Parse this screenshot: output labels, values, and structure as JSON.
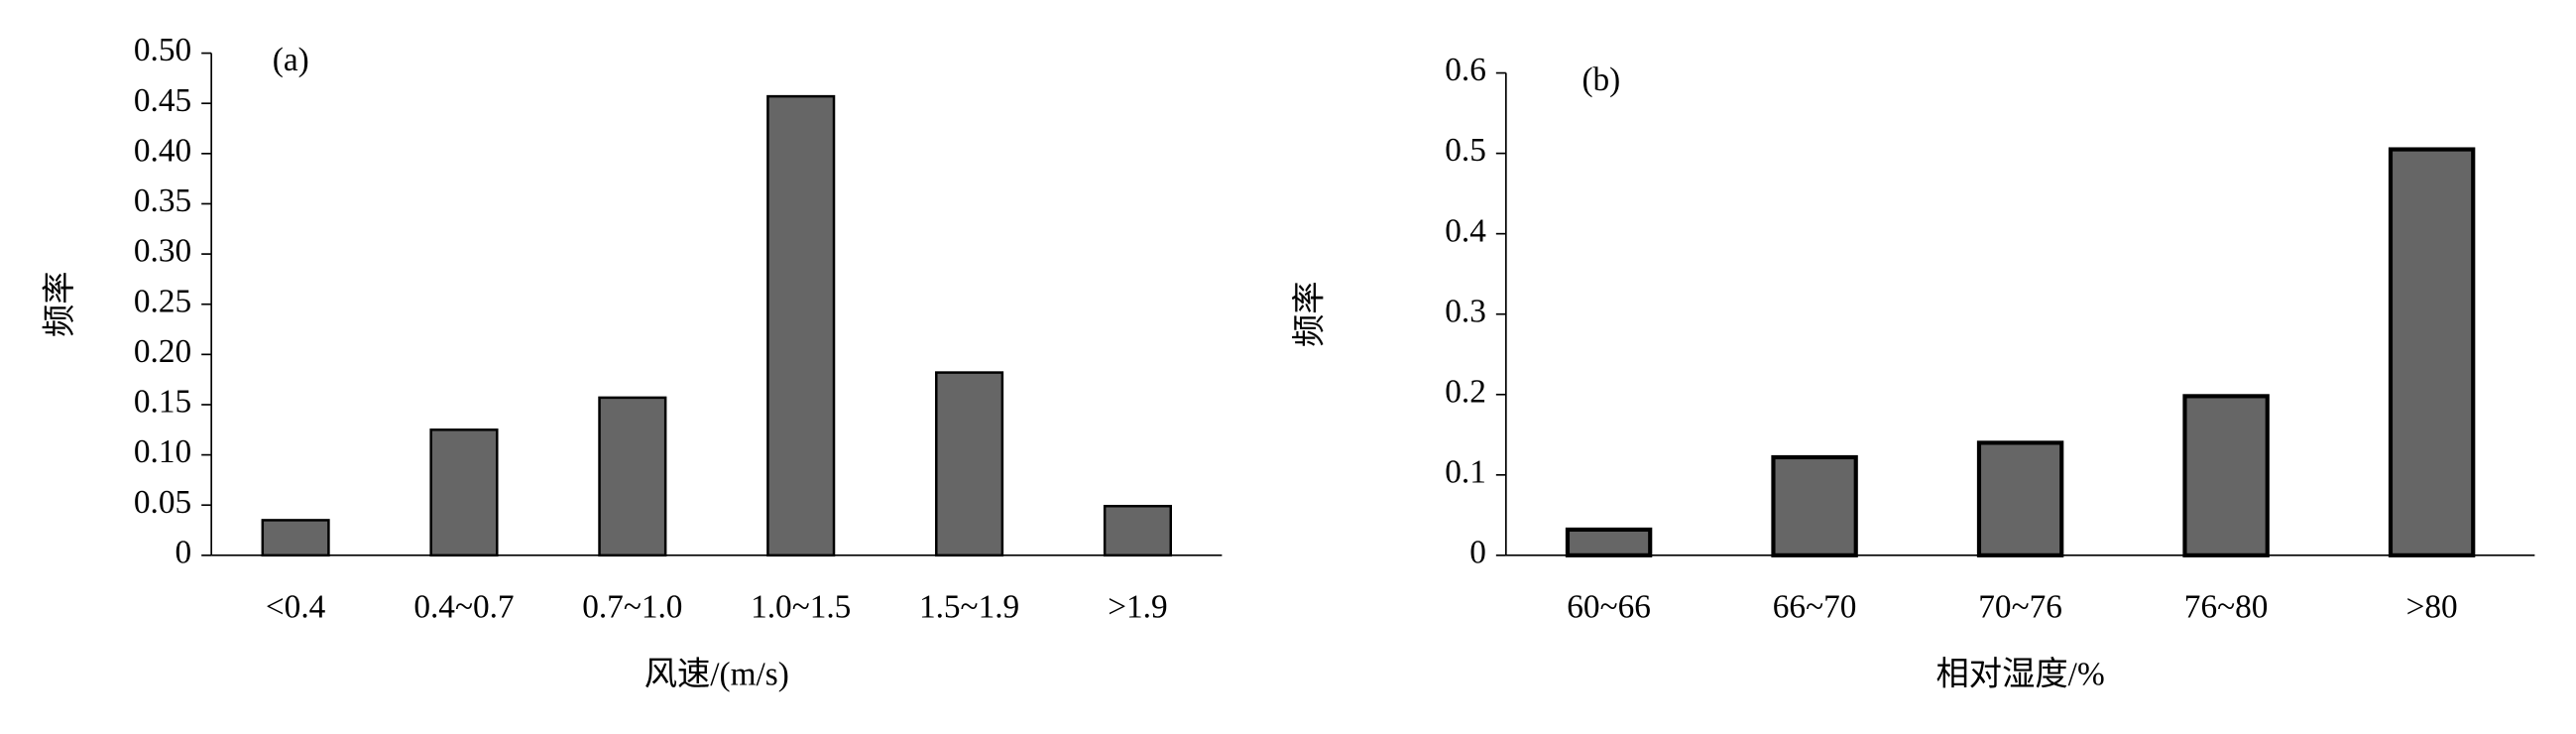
{
  "chart_data": [
    {
      "type": "bar",
      "title": "(a)",
      "x_label": "风速/(m/s)",
      "y_label": "频率",
      "categories": [
        "<0.4",
        "0.4~0.7",
        "0.7~1.0",
        "1.0~1.5",
        "1.5~1.9",
        ">1.9"
      ],
      "values": [
        0.035,
        0.125,
        0.157,
        0.457,
        0.182,
        0.049
      ],
      "color": "#666666",
      "ylim": [
        0,
        0.5
      ],
      "yticks": [
        0,
        0.05,
        {
          "value": 0.1,
          "label": "0.10"
        },
        0.15,
        {
          "value": 0.2,
          "label": "0.20"
        },
        0.25,
        {
          "value": 0.3,
          "label": "0.30"
        },
        0.35,
        {
          "value": 0.4,
          "label": "0.40"
        },
        0.45,
        {
          "value": 0.5,
          "label": "0.50"
        }
      ],
      "grid": false
    },
    {
      "type": "bar",
      "title": "(b)",
      "x_label": "相对湿度/%",
      "y_label": "频率",
      "categories": [
        "60~66",
        "66~70",
        "70~76",
        "76~80",
        ">80"
      ],
      "values": [
        0.032,
        0.122,
        0.14,
        0.198,
        0.505
      ],
      "color": "#666666",
      "ylim": [
        0,
        0.6
      ],
      "yticks": [
        0,
        0.1,
        0.2,
        0.3,
        0.4,
        0.5,
        0.6
      ],
      "grid": false
    }
  ]
}
